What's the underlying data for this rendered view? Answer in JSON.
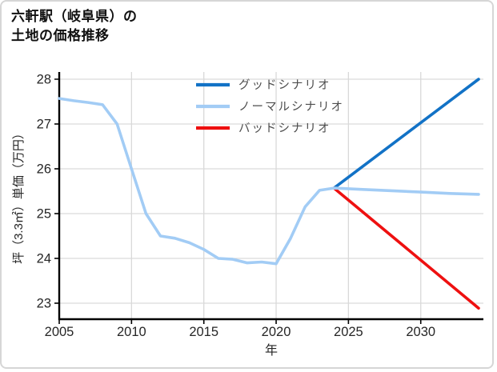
{
  "window": {
    "background": "#ffffff",
    "border_color": "#d6d6d6"
  },
  "title": {
    "lines": [
      "六軒駅（岐阜県）の",
      "土地の価格推移"
    ],
    "color": "#111111"
  },
  "chart_data": {
    "type": "line",
    "title": "六軒駅（岐阜県）の土地の価格推移",
    "xlabel": "年",
    "ylabel": "坪（3.3㎡）単価（万円）",
    "x_ticks": [
      2005,
      2010,
      2015,
      2020,
      2025,
      2030
    ],
    "y_ticks": [
      23,
      24,
      25,
      26,
      27,
      28
    ],
    "x_range": [
      2005,
      2034
    ],
    "y_range": [
      22.6,
      28.2
    ],
    "grid": true,
    "legend_position": "top-center",
    "colors": {
      "axis": "#000000",
      "grid": "#d9d9d9",
      "tick_label": "#262626",
      "legend_text": "#4d4d4d"
    },
    "series": [
      {
        "name": "グッドシナリオ",
        "key": "good",
        "color": "#1272c6",
        "x": [
          2024,
          2034
        ],
        "values": [
          25.57,
          28.0
        ]
      },
      {
        "name": "ノーマルシナリオ",
        "key": "normal",
        "color": "#a2ccf5",
        "x": [
          2005,
          2006,
          2007,
          2008,
          2009,
          2010,
          2011,
          2012,
          2013,
          2014,
          2015,
          2016,
          2017,
          2018,
          2019,
          2020,
          2021,
          2022,
          2023,
          2024,
          2026,
          2028,
          2030,
          2032,
          2034
        ],
        "values": [
          27.57,
          27.52,
          27.48,
          27.43,
          27.0,
          26.0,
          25.0,
          24.5,
          24.45,
          24.35,
          24.2,
          24.0,
          23.98,
          23.9,
          23.92,
          23.88,
          24.45,
          25.15,
          25.52,
          25.57,
          25.54,
          25.51,
          25.48,
          25.45,
          25.43
        ]
      },
      {
        "name": "バッドシナリオ",
        "key": "bad",
        "color": "#ee1010",
        "x": [
          2024,
          2034
        ],
        "values": [
          25.57,
          22.89
        ]
      }
    ]
  }
}
